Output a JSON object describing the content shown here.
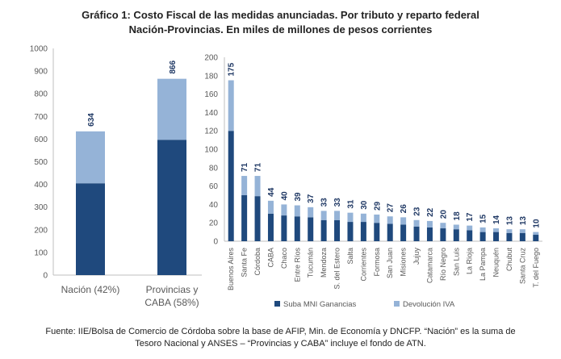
{
  "title_lines": [
    "Gráfico 1: Costo Fiscal de las medidas anunciadas. Por tributo y reparto federal",
    "Nación-Provincias. En miles de millones de pesos corrientes"
  ],
  "source_lines": [
    "Fuente: IIE/Bolsa de Comercio de Córdoba sobre la base de AFIP, Min. de Economía y DNCFP. “Nación” es la suma de",
    "Tesoro Nacional y ANSES – “Provincias y CABA” incluye el fondo de ATN."
  ],
  "colors": {
    "series1": "#1f497d",
    "series2": "#95b3d7",
    "axis": "#595959",
    "grid": "#d9d9d9",
    "label": "#1f3864"
  },
  "chart_data": [
    {
      "type": "bar",
      "stacked": true,
      "categories": [
        [
          "Nación (42%)"
        ],
        [
          "Provincias y",
          "CABA (58%)"
        ]
      ],
      "series": [
        {
          "name": "Suba MNI Ganancias",
          "values": [
            405,
            597
          ]
        },
        {
          "name": "Devolución IVA",
          "values": [
            229,
            269
          ]
        }
      ],
      "totals": [
        634,
        866
      ],
      "ylim": [
        0,
        1000
      ],
      "yticks": [
        0,
        100,
        200,
        300,
        400,
        500,
        600,
        700,
        800,
        900,
        1000
      ],
      "grid": false
    },
    {
      "type": "bar",
      "stacked": true,
      "categories": [
        "Buenos Aires",
        "Santa Fe",
        "Córdoba",
        "CABA",
        "Chaco",
        "Entre Ríos",
        "Tucumán",
        "Mendoza",
        "S. del Estero",
        "Salta",
        "Corrientes",
        "Formosa",
        "San Juan",
        "Misiones",
        "Jujuy",
        "Catamarca",
        "Río Negro",
        "San Luis",
        "La Rioja",
        "La Pampa",
        "Neuquén",
        "Chubut",
        "Santa Cruz",
        "T. del Fuego"
      ],
      "series": [
        {
          "name": "Suba MNI Ganancias",
          "values": [
            120,
            50,
            49,
            30,
            28,
            27,
            26,
            23,
            23,
            21,
            21,
            20,
            19,
            18,
            16,
            15,
            14,
            13,
            12,
            10,
            10,
            9,
            9,
            7
          ]
        },
        {
          "name": "Devolución IVA",
          "values": [
            55,
            21,
            22,
            14,
            12,
            12,
            11,
            10,
            10,
            10,
            9,
            9,
            8,
            8,
            7,
            7,
            6,
            5,
            5,
            5,
            4,
            4,
            4,
            3
          ]
        }
      ],
      "totals": [
        175,
        71,
        71,
        44,
        40,
        39,
        37,
        33,
        33,
        31,
        30,
        29,
        27,
        26,
        23,
        22,
        20,
        18,
        17,
        15,
        14,
        13,
        13,
        10
      ],
      "ylim": [
        0,
        200
      ],
      "yticks": [
        0,
        20,
        40,
        60,
        80,
        100,
        120,
        140,
        160,
        180,
        200
      ],
      "grid": false,
      "legend": {
        "position": "bottom",
        "entries": [
          "Suba MNI Ganancias",
          "Devolución IVA"
        ]
      }
    }
  ]
}
